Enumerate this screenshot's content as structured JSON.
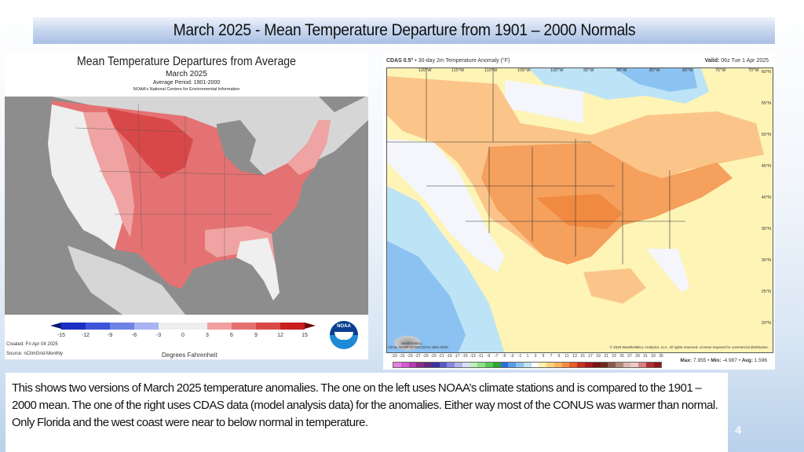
{
  "slide": {
    "title": "March 2025 - Mean Temperature Departure from 1901 – 2000 Normals",
    "page_number": "4",
    "caption": "This shows two versions of March 2025 temperature anomalies. The one on the left uses NOAA’s climate stations and is compared to the 1901 – 2000 mean.  The one of the right uses CDAS data (model analysis data) for the anomalies.  Either way most of the CONUS  was warmer than normal.  Only Florida and the west coast were near to below normal in temperature."
  },
  "left_map": {
    "title": "Mean Temperature Departures from Average",
    "subtitle": "March 2025",
    "average_period": "Average Period: 1901-2000",
    "source_org": "NOAA's National Centers for Environmental Information",
    "created": "Created: Fri Apr 04 2025",
    "source": "Source: nClimGrid-Monthly",
    "units": "Degrees Fahrenheit",
    "logo_text": "NOAA",
    "legend_ticks": [
      "-15",
      "-12",
      "-9",
      "-6",
      "-3",
      "0",
      "3",
      "6",
      "9",
      "12",
      "15"
    ],
    "legend_colors": [
      "#1b2fc4",
      "#3d55d8",
      "#6f82e6",
      "#a9b2f2",
      "#eeeeee",
      "#eeeeee",
      "#f0a0a0",
      "#e57070",
      "#d94848",
      "#c81e1e"
    ],
    "colors": {
      "ocean": "#8d8d8d",
      "land_outside": "#d6d6d6",
      "near_normal": "#efefef",
      "warm_1": "#f0a3a3",
      "warm_2": "#e57272",
      "warm_3": "#d94848"
    }
  },
  "right_map": {
    "product": "CDAS 0.5°",
    "description": "• 30-day 2m Temperature Anomaly (°F)",
    "valid_label": "Valid:",
    "valid_value": "06z Tue 1 Apr 2025",
    "longitude_labels": [
      "120°W",
      "115°W",
      "110°W",
      "105°W",
      "100°W",
      "95°W",
      "90°W",
      "85°W",
      "80°W",
      "75°W",
      "70°W"
    ],
    "latitude_labels": [
      "60°N",
      "55°N",
      "50°N",
      "45°N",
      "40°N",
      "35°N",
      "30°N",
      "25°N",
      "20°N"
    ],
    "climatology": "Clima: NCEP-CFSR/CDAS 1991-2020",
    "copyright": "© 2025 WeatherBELL Analytics, LLC. All rights reserved. License required for commercial distribution.",
    "logo_text": "WeatherBELL",
    "legend_ticks": [
      "-33",
      "-31",
      "-29",
      "-27",
      "-25",
      "-23",
      "-21",
      "-19",
      "-17",
      "-15",
      "-13",
      "-11",
      "-9",
      "-7",
      "-5",
      "-3",
      "-1",
      "1",
      "3",
      "5",
      "7",
      "9",
      "11",
      "13",
      "15",
      "17",
      "19",
      "21",
      "23",
      "25",
      "27",
      "29",
      "31",
      "33",
      "35"
    ],
    "legend_colors": [
      "#e87fe0",
      "#d558cf",
      "#b43ab0",
      "#8a2b8a",
      "#5b2a82",
      "#3b2fa0",
      "#5a57c8",
      "#8b87e0",
      "#b5b3ee",
      "#d9e0f5",
      "#b8efb5",
      "#8be08a",
      "#55c855",
      "#2fa62f",
      "#2a6fd6",
      "#5a9bea",
      "#8cc2f2",
      "#bde3f7",
      "#ffffff",
      "#fff3a8",
      "#ffd27a",
      "#ffb25a",
      "#f68a3c",
      "#e85a2a",
      "#c9301e",
      "#a51818",
      "#7e1010",
      "#6a2a1a",
      "#8a5a4a",
      "#b08878",
      "#d8b8b0",
      "#e9c8c8",
      "#d88080",
      "#b03030",
      "#901818"
    ],
    "stats": {
      "max_label": "Max:",
      "max": "7.955",
      "min_label": "Min:",
      "min": "-4.987",
      "avg_label": "Avg:",
      "avg": "1.596"
    },
    "colors": {
      "near_zero": "#fdf4b6",
      "warm": "#fbc58a",
      "warmer": "#f5a05c",
      "cool": "#bde3f7",
      "cooler": "#8cc2f2",
      "neutral": "#f4f6fb"
    }
  }
}
